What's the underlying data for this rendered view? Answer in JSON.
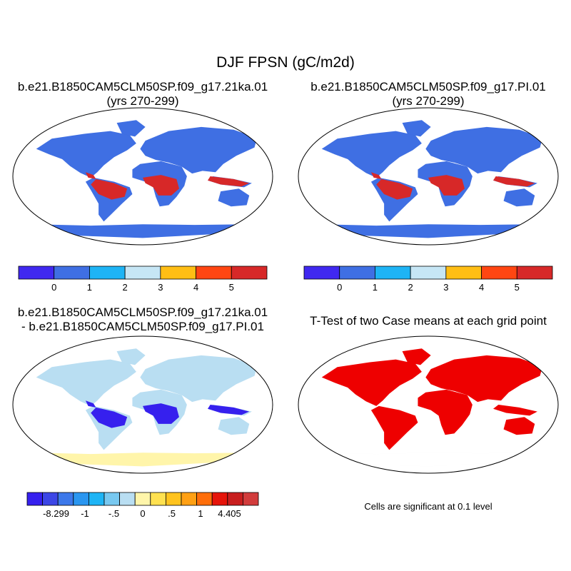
{
  "title": "DJF FPSN (gC/m2d)",
  "panels": [
    {
      "id": "case-a",
      "title_line1": "b.e21.B1850CAM5CLM50SP.f09_g17.21ka.01",
      "title_line2": "(yrs 270-299)"
    },
    {
      "id": "case-b",
      "title_line1": "b.e21.B1850CAM5CLM50SP.f09_g17.PI.01",
      "title_line2": "(yrs 270-299)"
    },
    {
      "id": "diff",
      "title_line1": "b.e21.B1850CAM5CLM50SP.f09_g17.21ka.01",
      "title_line2": "- b.e21.B1850CAM5CLM50SP.f09_g17.PI.01"
    },
    {
      "id": "ttest",
      "title_line1": "T-Test of two Case means at each grid point",
      "title_line2": ""
    }
  ],
  "colorbar_abs": {
    "colors": [
      "#4028f0",
      "#3f6fe3",
      "#1eb4f5",
      "#c6e6f5",
      "#ffbe14",
      "#ff4612",
      "#d72828"
    ],
    "labels": [
      "0",
      "1",
      "2",
      "3",
      "4",
      "5"
    ]
  },
  "colorbar_diff": {
    "colors": [
      "#3620ee",
      "#3c46e6",
      "#3c78ea",
      "#2a96f0",
      "#1eb4f5",
      "#78c8f0",
      "#b9def2",
      "#fff5aa",
      "#ffe150",
      "#ffc31e",
      "#ffa014",
      "#ff6e0a",
      "#e6140a",
      "#c81e1e",
      "#d23c3c"
    ],
    "labels": [
      "-8.299",
      "-1",
      "-.5",
      "0",
      ".5",
      "1",
      "4.405"
    ]
  },
  "significance_note": "Cells are significant at 0.1 level",
  "map_colors": {
    "ocean": "#ffffff",
    "land_abs": "#3f6fe3",
    "tropics_abs": "#d72828",
    "diff_land": "#b9def2",
    "diff_antarctica": "#fff5aa",
    "diff_tropics": "#3620ee",
    "significant": "#ee0000"
  }
}
